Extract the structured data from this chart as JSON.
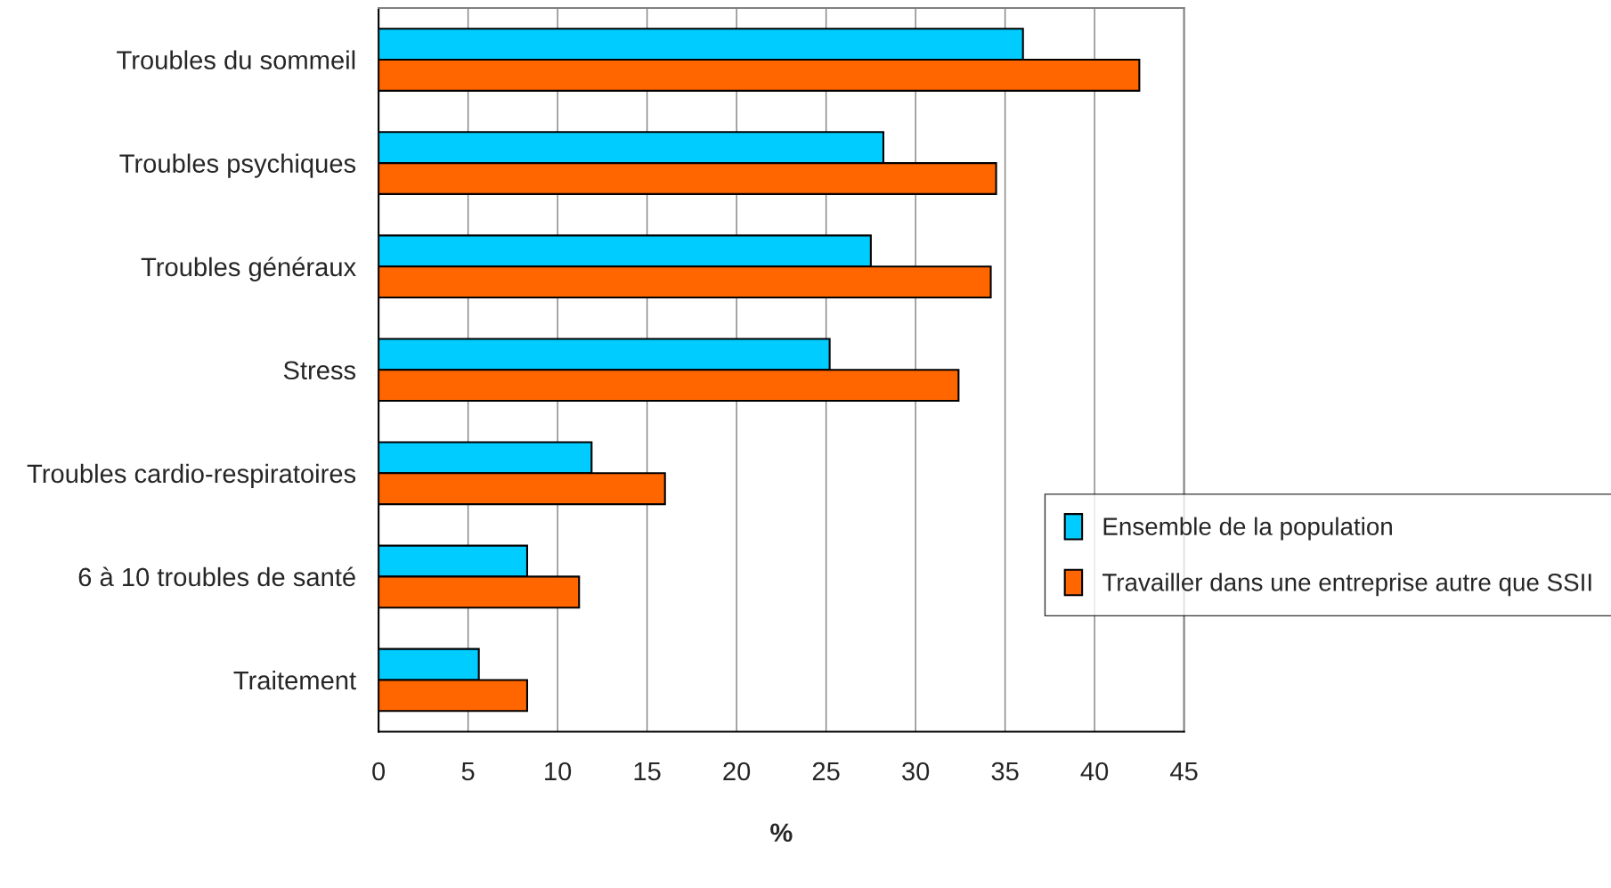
{
  "chart_data": {
    "type": "bar",
    "orientation": "horizontal",
    "xlabel": "%",
    "categories": [
      "Troubles du sommeil",
      "Troubles psychiques",
      "Troubles généraux",
      "Stress",
      "Troubles cardio-respiratoires",
      "6 à 10 troubles de santé",
      "Traitement"
    ],
    "series": [
      {
        "name": "Ensemble de la population",
        "color": "#00ccff",
        "values": [
          36.0,
          28.2,
          27.5,
          25.2,
          11.9,
          8.3,
          5.6
        ]
      },
      {
        "name": "Travailler dans une entreprise autre que SSII",
        "color": "#ff6600",
        "values": [
          42.5,
          34.5,
          34.2,
          32.4,
          16.0,
          11.2,
          8.3
        ]
      }
    ],
    "xlim": [
      0,
      45
    ],
    "xticks": [
      0,
      5,
      10,
      15,
      20,
      25,
      30,
      35,
      40,
      45
    ],
    "grid": "x",
    "legend": "right"
  }
}
